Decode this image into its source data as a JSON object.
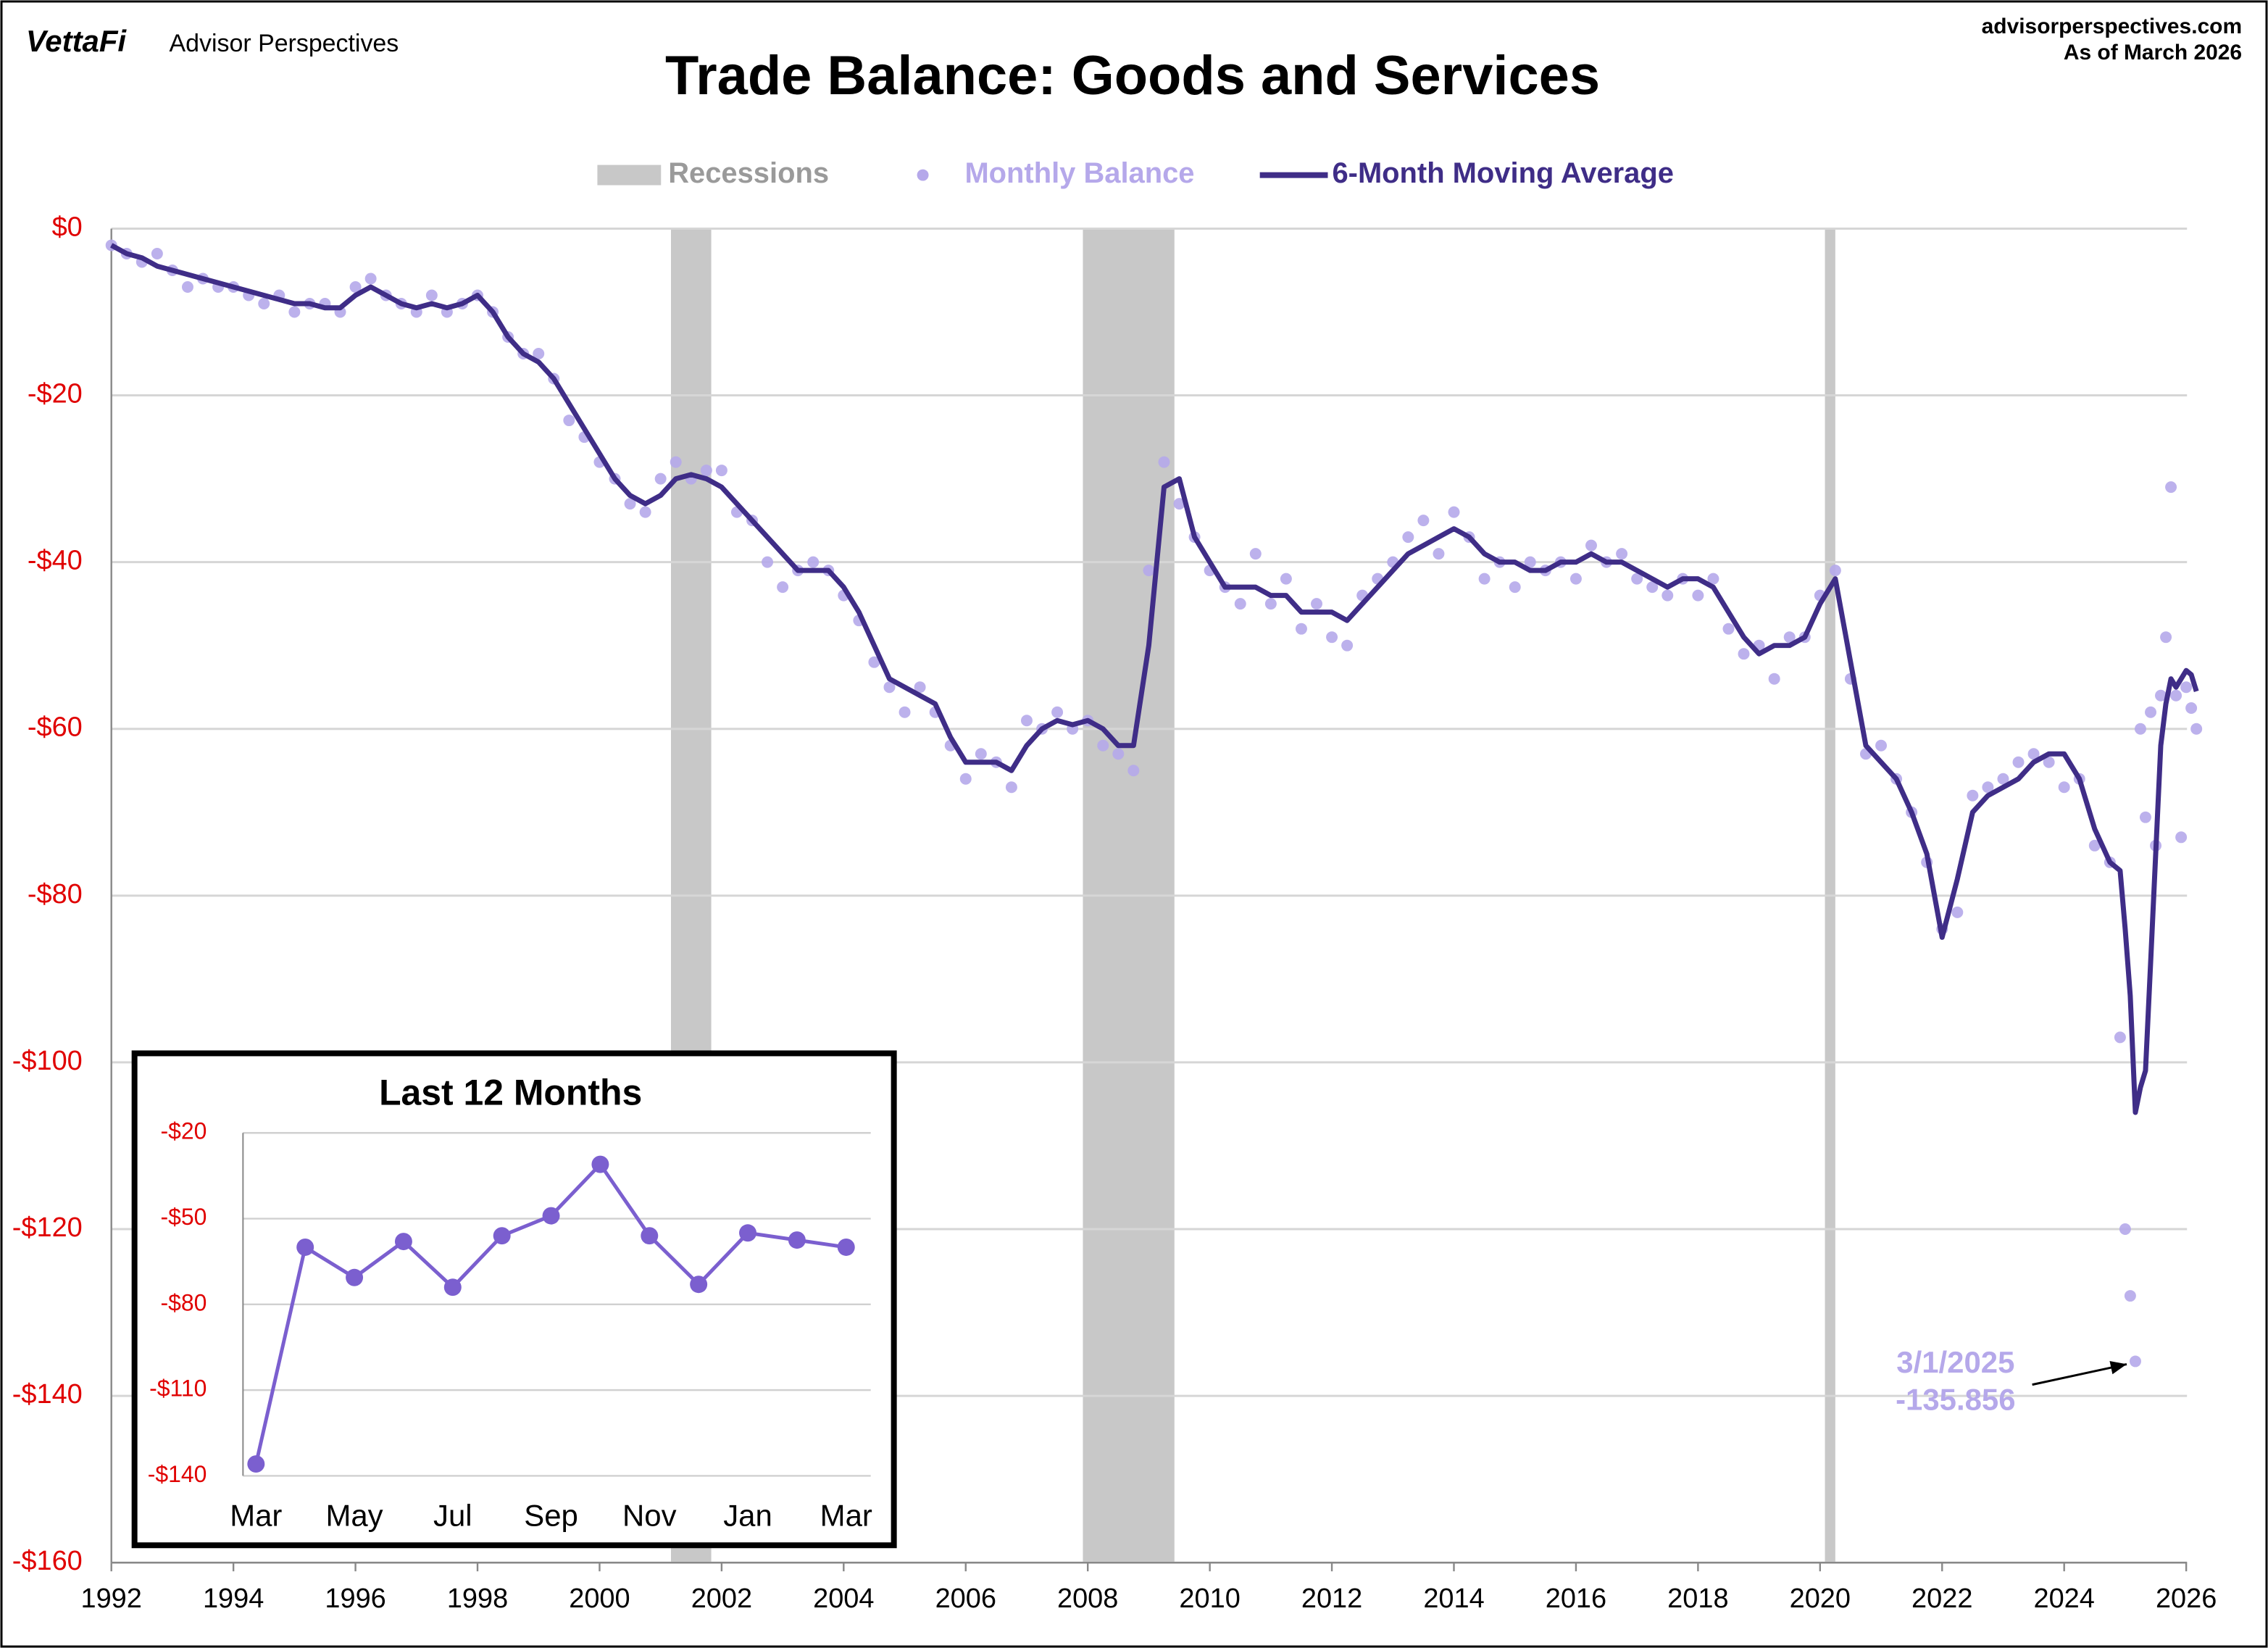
{
  "brand": "VettaFi",
  "brand_sub": "Advisor Perspectives",
  "source": "advisorperspectives.com",
  "as_of": "As of March 2026",
  "chart_data": [
    {
      "type": "line",
      "title": "Trade Balance: Goods and Services",
      "legend": {
        "position": "top",
        "recessions_label": "Recessions"
      },
      "recessions": [
        [
          2001.17,
          2001.83
        ],
        [
          2007.92,
          2009.42
        ],
        [
          2020.08,
          2020.25
        ]
      ],
      "recession_color": "#c8c8c8",
      "x": [
        1992,
        1992.25,
        1992.5,
        1992.75,
        1993,
        1993.25,
        1993.5,
        1993.75,
        1994,
        1994.25,
        1994.5,
        1994.75,
        1995,
        1995.25,
        1995.5,
        1995.75,
        1996,
        1996.25,
        1996.5,
        1996.75,
        1997,
        1997.25,
        1997.5,
        1997.75,
        1998,
        1998.25,
        1998.5,
        1998.75,
        1999,
        1999.25,
        1999.5,
        1999.75,
        2000,
        2000.25,
        2000.5,
        2000.75,
        2001,
        2001.25,
        2001.5,
        2001.75,
        2002,
        2002.25,
        2002.5,
        2002.75,
        2003,
        2003.25,
        2003.5,
        2003.75,
        2004,
        2004.25,
        2004.5,
        2004.75,
        2005,
        2005.25,
        2005.5,
        2005.75,
        2006,
        2006.25,
        2006.5,
        2006.75,
        2007,
        2007.25,
        2007.5,
        2007.75,
        2008,
        2008.25,
        2008.5,
        2008.75,
        2009,
        2009.25,
        2009.5,
        2009.75,
        2010,
        2010.25,
        2010.5,
        2010.75,
        2011,
        2011.25,
        2011.5,
        2011.75,
        2012,
        2012.25,
        2012.5,
        2012.75,
        2013,
        2013.25,
        2013.5,
        2013.75,
        2014,
        2014.25,
        2014.5,
        2014.75,
        2015,
        2015.25,
        2015.5,
        2015.75,
        2016,
        2016.25,
        2016.5,
        2016.75,
        2017,
        2017.25,
        2017.5,
        2017.75,
        2018,
        2018.25,
        2018.5,
        2018.75,
        2019,
        2019.25,
        2019.5,
        2019.75,
        2020,
        2020.25,
        2020.5,
        2020.75,
        2021,
        2021.25,
        2021.5,
        2021.75,
        2022,
        2022.25,
        2022.5,
        2022.75,
        2023,
        2023.25,
        2023.5,
        2023.75,
        2024,
        2024.25,
        2024.5,
        2024.75,
        2024.917,
        2025,
        2025.083,
        2025.167,
        2025.25,
        2025.333,
        2025.417,
        2025.5,
        2025.583,
        2025.667,
        2025.75,
        2025.833,
        2025.917,
        2026,
        2026.083,
        2026.167
      ],
      "series": [
        {
          "name": "Monthly Balance",
          "mode": "scatter",
          "color": "#b5a8ea",
          "values": [
            -2,
            -3,
            -4,
            -3,
            -5,
            -7,
            -6,
            -7,
            -7,
            -8,
            -9,
            -8,
            -10,
            -9,
            -9,
            -10,
            -7,
            -6,
            -8,
            -9,
            -10,
            -8,
            -10,
            -9,
            -8,
            -10,
            -13,
            -15,
            -15,
            -18,
            -23,
            -25,
            -28,
            -30,
            -33,
            -34,
            -30,
            -28,
            -30,
            -29,
            -29,
            -34,
            -35,
            -40,
            -43,
            -41,
            -40,
            -41,
            -44,
            -47,
            -52,
            -55,
            -58,
            -55,
            -58,
            -62,
            -66,
            -63,
            -64,
            -67,
            -59,
            -60,
            -58,
            -60,
            -59,
            -62,
            -63,
            -65,
            -41,
            -28,
            -33,
            -37,
            -41,
            -43,
            -45,
            -39,
            -45,
            -42,
            -48,
            -45,
            -49,
            -50,
            -44,
            -42,
            -40,
            -37,
            -35,
            -39,
            -34,
            -37,
            -42,
            -40,
            -43,
            -40,
            -41,
            -40,
            -42,
            -38,
            -40,
            -39,
            -42,
            -43,
            -44,
            -42,
            -44,
            -42,
            -48,
            -51,
            -50,
            -54,
            -49,
            -49,
            -44,
            -41,
            -54,
            -63,
            -62,
            -66,
            -70,
            -76,
            -84,
            -82,
            -68,
            -67,
            -66,
            -64,
            -63,
            -64,
            -67,
            -66,
            -74,
            -76,
            -97,
            -120,
            -128,
            -135.856,
            -60,
            -70.6,
            -58,
            -74,
            -56,
            -49,
            -31,
            -56,
            -73,
            -55,
            -57.5,
            -60
          ]
        },
        {
          "name": "6-Month Moving Average",
          "mode": "line",
          "color": "#3f2d87",
          "values": [
            -2,
            -3,
            -3.5,
            -4.5,
            -5,
            -5.5,
            -6,
            -6.5,
            -7,
            -7.5,
            -8,
            -8.5,
            -9,
            -9,
            -9.5,
            -9.5,
            -8,
            -7,
            -8,
            -9,
            -9.5,
            -9,
            -9.5,
            -9,
            -8,
            -10,
            -13,
            -15,
            -16,
            -18,
            -21,
            -24,
            -27,
            -30,
            -32,
            -33,
            -32,
            -30,
            -29.5,
            -30,
            -31,
            -33,
            -35,
            -37,
            -39,
            -41,
            -41,
            -41,
            -43,
            -46,
            -50,
            -54,
            -55,
            -56,
            -57,
            -61,
            -64,
            -64,
            -64,
            -65,
            -62,
            -60,
            -59,
            -59.5,
            -59,
            -60,
            -62,
            -62,
            -50,
            -31,
            -30,
            -37,
            -40,
            -43,
            -43,
            -43,
            -44,
            -44,
            -46,
            -46,
            -46,
            -47,
            -45,
            -43,
            -41,
            -39,
            -38,
            -37,
            -36,
            -37,
            -39,
            -40,
            -40,
            -41,
            -41,
            -40,
            -40,
            -39,
            -40,
            -40,
            -41,
            -42,
            -43,
            -42,
            -42,
            -43,
            -46,
            -49,
            -51,
            -50,
            -50,
            -49,
            -45,
            -42,
            -52,
            -62,
            -64,
            -66,
            -70,
            -75,
            -85,
            -78,
            -70,
            -68,
            -67,
            -66,
            -64,
            -63,
            -63,
            -66,
            -72,
            -76,
            -77,
            -84,
            -92,
            -106,
            -103,
            -101,
            -88,
            -75,
            -62,
            -57,
            -54,
            -55,
            -54,
            -53,
            -53.5,
            -55.5
          ]
        }
      ],
      "annotation": {
        "date": "3/1/2025",
        "value_label": "-135.856"
      },
      "xlim": [
        1992,
        2026.25
      ],
      "xticks": [
        1992,
        1994,
        1996,
        1998,
        2000,
        2002,
        2004,
        2006,
        2008,
        2010,
        2012,
        2014,
        2016,
        2018,
        2020,
        2022,
        2024,
        2026
      ],
      "ylim": [
        -160,
        0
      ],
      "yticks": [
        {
          "value": 0,
          "label": "$0"
        },
        {
          "value": -20,
          "label": "-$20"
        },
        {
          "value": -40,
          "label": "-$40"
        },
        {
          "value": -60,
          "label": "-$60"
        },
        {
          "value": -80,
          "label": "-$80"
        },
        {
          "value": -100,
          "label": "-$100"
        },
        {
          "value": -120,
          "label": "-$120"
        },
        {
          "value": -140,
          "label": "-$140"
        },
        {
          "value": -160,
          "label": "-$160"
        }
      ],
      "grid": true
    },
    {
      "type": "line",
      "title": "Last 12 Months",
      "color": "#7b5fcf",
      "categories": [
        "Mar",
        null,
        "May",
        null,
        "Jul",
        null,
        "Sep",
        null,
        "Nov",
        null,
        "Jan",
        null,
        "Mar"
      ],
      "values": [
        -135.856,
        -60,
        -70.6,
        -58,
        -74,
        -56,
        -49,
        -31,
        -56,
        -73,
        -55,
        -57.5,
        -60
      ],
      "ylim": [
        -140,
        -20
      ],
      "yticks": [
        {
          "value": -20,
          "label": "-$20"
        },
        {
          "value": -50,
          "label": "-$50"
        },
        {
          "value": -80,
          "label": "-$80"
        },
        {
          "value": -110,
          "label": "-$110"
        },
        {
          "value": -140,
          "label": "-$140"
        }
      ],
      "grid": true
    }
  ]
}
